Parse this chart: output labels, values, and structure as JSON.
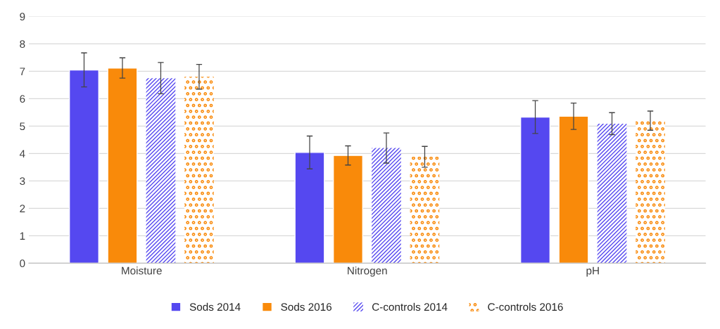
{
  "chart_data": {
    "type": "bar",
    "categories": [
      "Moisture",
      "Nitrogen",
      "pH"
    ],
    "series": [
      {
        "name": "Sods 2014",
        "color": "#5548f0",
        "values": [
          7.05,
          4.04,
          5.33
        ],
        "errors": [
          0.62,
          0.6,
          0.6
        ]
      },
      {
        "name": "Sods 2016",
        "color": "#f98a0a",
        "values": [
          7.12,
          3.93,
          5.36
        ],
        "errors": [
          0.37,
          0.35,
          0.48
        ]
      },
      {
        "name": "C-controls 2014",
        "color": "#5548f0",
        "values": [
          6.75,
          4.2,
          5.09
        ],
        "errors": [
          0.57,
          0.55,
          0.4
        ]
      },
      {
        "name": "C-controls 2016",
        "color": "#f98a0a",
        "values": [
          6.8,
          3.88,
          5.2
        ],
        "errors": [
          0.45,
          0.38,
          0.35
        ]
      }
    ],
    "ylim": [
      0,
      9
    ],
    "yticks": [
      0,
      1,
      2,
      3,
      4,
      5,
      6,
      7,
      8,
      9
    ],
    "grid": "y",
    "legend": "bottom"
  }
}
